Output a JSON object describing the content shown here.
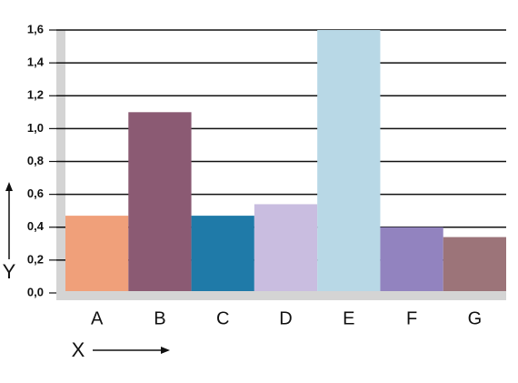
{
  "chart_data": {
    "type": "bar",
    "categories": [
      "A",
      "B",
      "C",
      "D",
      "E",
      "F",
      "G"
    ],
    "values": [
      0.47,
      1.1,
      0.47,
      0.54,
      1.6,
      0.4,
      0.34
    ],
    "colors": [
      "#f0a07a",
      "#8b5a73",
      "#1f7aa8",
      "#c9bde0",
      "#b8d8e6",
      "#9283bf",
      "#9c7479"
    ],
    "ylim": [
      0,
      1.6
    ],
    "yticks": [
      {
        "value": 0,
        "label": "0,0"
      },
      {
        "value": 0.2,
        "label": "0,2"
      },
      {
        "value": 0.4,
        "label": "0,4"
      },
      {
        "value": 0.6,
        "label": "0,6"
      },
      {
        "value": 0.8,
        "label": "0,8"
      },
      {
        "value": 1.0,
        "label": "1,0"
      },
      {
        "value": 1.2,
        "label": "1,2"
      },
      {
        "value": 1.4,
        "label": "1,4"
      },
      {
        "value": 1.6,
        "label": "1,6"
      }
    ],
    "xlabel": "X",
    "ylabel": "Y",
    "grid": true
  }
}
